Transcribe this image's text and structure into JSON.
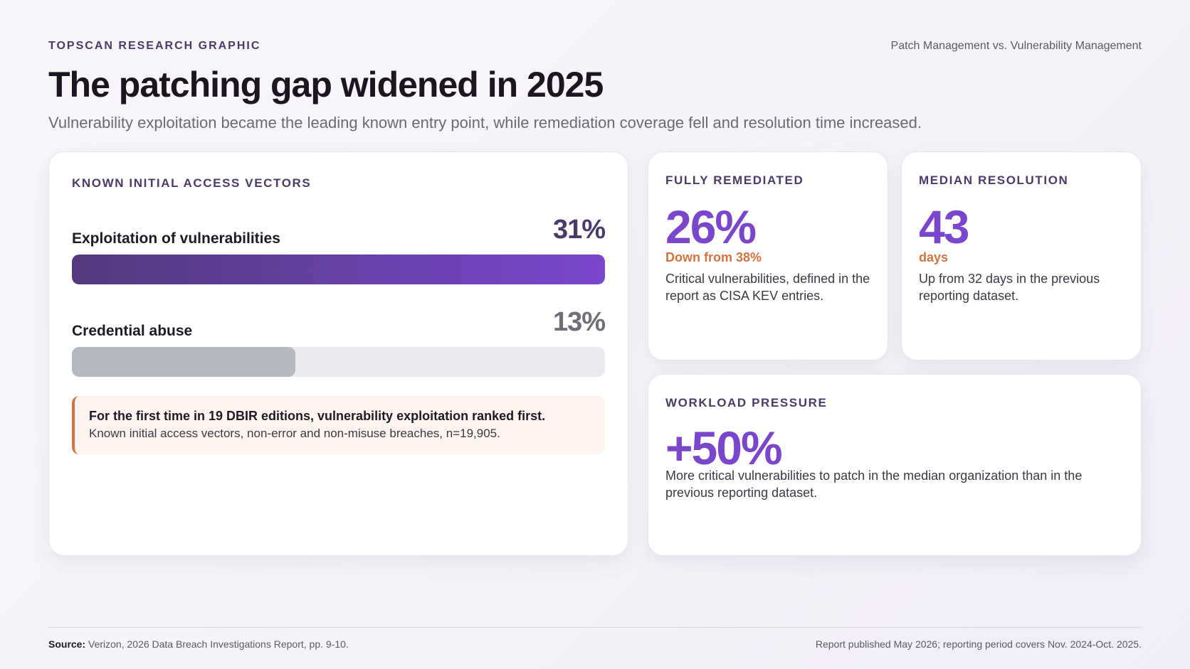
{
  "header": {
    "eyebrow": "TOPSCAN RESEARCH GRAPHIC",
    "topic": "Patch Management vs. Vulnerability Management",
    "title": "The patching gap widened in 2025",
    "subtitle": "Vulnerability exploitation became the leading known entry point, while remediation coverage fell and resolution time increased."
  },
  "chart_data": {
    "type": "bar",
    "title": "KNOWN INITIAL ACCESS VECTORS",
    "orientation": "horizontal",
    "categories": [
      "Exploitation of vulnerabilities",
      "Credential abuse"
    ],
    "values": [
      31,
      13
    ],
    "value_labels": [
      "31%",
      "13%"
    ],
    "unit": "%",
    "colors": {
      "primary_gradient": [
        "#523a7c",
        "#7a46cc"
      ],
      "secondary": "#b7b9c0",
      "track": "#ebebef",
      "value_primary": "#4a3a6a",
      "value_secondary": "#6e6f78"
    }
  },
  "callout": {
    "strong": "For the first time in 19 DBIR editions, vulnerability exploitation ranked first.",
    "text": "Known initial access vectors, non-error and non-misuse breaches, n=19,905."
  },
  "stats": {
    "remediated": {
      "label": "FULLY REMEDIATED",
      "value": "26%",
      "sub": "Down from 38%",
      "desc": "Critical vulnerabilities, defined in the report as CISA KEV entries."
    },
    "resolution": {
      "label": "MEDIAN RESOLUTION",
      "value": "43",
      "sub": "days",
      "desc": "Up from 32 days in the previous reporting dataset."
    },
    "workload": {
      "label": "WORKLOAD PRESSURE",
      "value": "+50%",
      "desc": "More critical vulnerabilities to patch in the median organization than in the previous reporting dataset."
    }
  },
  "footer": {
    "source_label": "Source:",
    "source_text": " Verizon, 2026 Data Breach Investigations Report, pp. 9-10.",
    "published": "Report published May 2026; reporting period covers Nov. 2024-Oct. 2025."
  },
  "colors": {
    "accent": "#7a46cc",
    "warm": "#d2743f",
    "heading": "#4a3a6a"
  }
}
